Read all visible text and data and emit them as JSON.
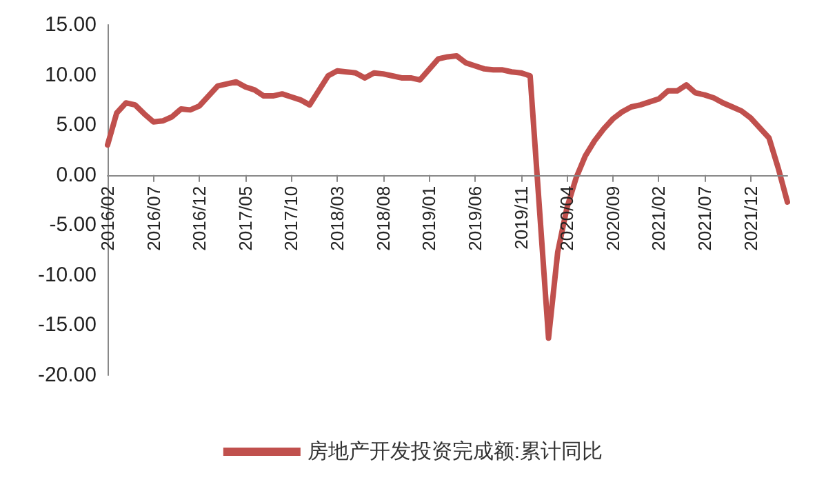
{
  "chart_data": {
    "type": "line",
    "categories": [
      "2016/02",
      null,
      null,
      null,
      null,
      "2016/07",
      null,
      null,
      null,
      null,
      "2016/12",
      null,
      null,
      null,
      null,
      "2017/05",
      null,
      null,
      null,
      null,
      "2017/10",
      null,
      null,
      null,
      null,
      "2018/03",
      null,
      null,
      null,
      null,
      "2018/08",
      null,
      null,
      null,
      null,
      "2019/01",
      null,
      null,
      null,
      null,
      "2019/06",
      null,
      null,
      null,
      null,
      "2019/11",
      null,
      null,
      null,
      null,
      "2020/04",
      null,
      null,
      null,
      null,
      "2020/09",
      null,
      null,
      null,
      null,
      "2021/02",
      null,
      null,
      null,
      null,
      "2021/07",
      null,
      null,
      null,
      null,
      "2021/12",
      null,
      null,
      null,
      null
    ],
    "series": [
      {
        "name": "房地产开发投资完成额:累计同比",
        "color": "#c0504d",
        "values": [
          3.0,
          6.2,
          7.2,
          7.0,
          6.1,
          5.3,
          5.4,
          5.8,
          6.6,
          6.5,
          6.9,
          null,
          8.9,
          9.1,
          9.3,
          8.8,
          8.5,
          7.9,
          7.9,
          8.1,
          7.8,
          7.5,
          7.0,
          null,
          9.9,
          10.4,
          10.3,
          10.2,
          9.7,
          10.2,
          10.1,
          9.9,
          9.7,
          9.7,
          9.5,
          null,
          11.6,
          11.8,
          11.9,
          11.2,
          10.9,
          10.6,
          10.5,
          10.5,
          10.3,
          10.2,
          9.9,
          null,
          -16.3,
          -7.7,
          -3.3,
          -0.3,
          1.9,
          3.4,
          4.6,
          5.6,
          6.3,
          6.8,
          7.0,
          null,
          7.6,
          8.4,
          8.4,
          9.0,
          8.2,
          8.0,
          7.7,
          7.2,
          6.8,
          6.4,
          5.7,
          null,
          3.7,
          0.7,
          -2.7
        ]
      }
    ],
    "ylim": [
      -20,
      15
    ],
    "yticks": [
      {
        "value": -20,
        "label": "-20.00"
      },
      {
        "value": -15,
        "label": "-15.00"
      },
      {
        "value": -10,
        "label": "-10.00"
      },
      {
        "value": -5,
        "label": "-5.00"
      },
      {
        "value": 0,
        "label": "0.00"
      },
      {
        "value": 5,
        "label": "5.00"
      },
      {
        "value": 10,
        "label": "10.00"
      },
      {
        "value": 15,
        "label": "15.00"
      }
    ],
    "grid": false,
    "legend": "bottom",
    "marker": "none",
    "line_style": "solid"
  }
}
